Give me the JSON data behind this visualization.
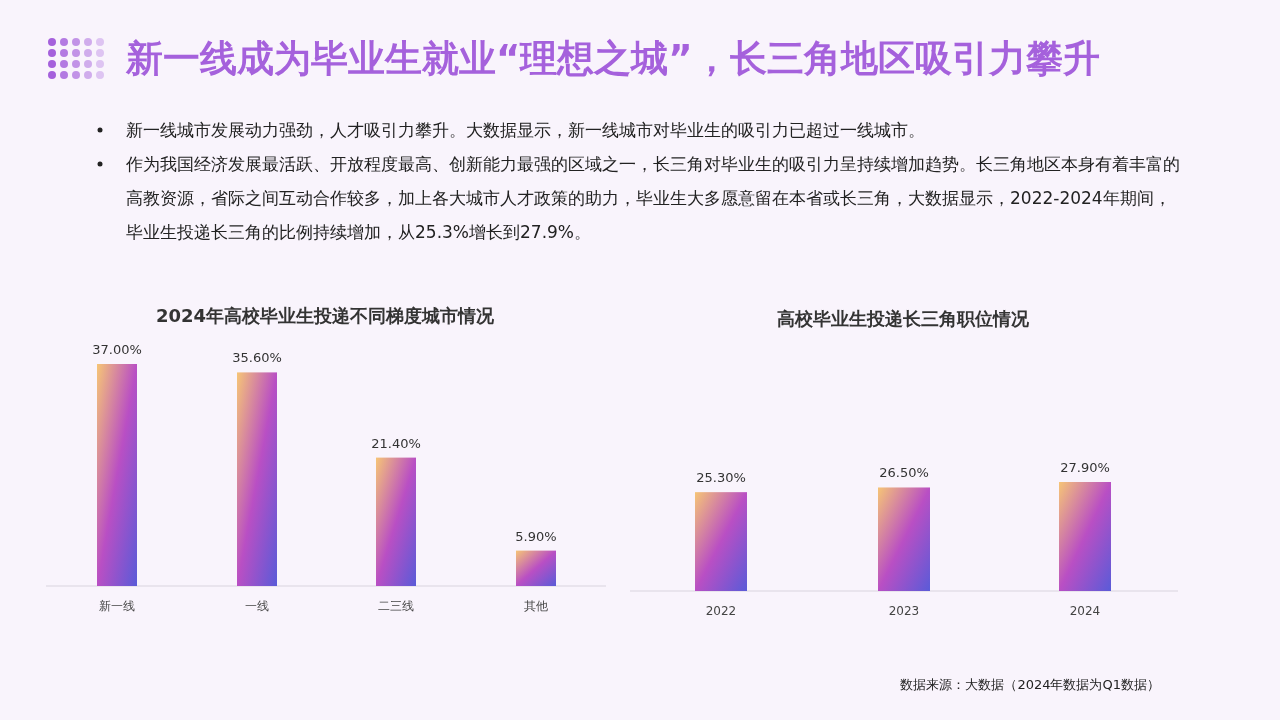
{
  "chart_data": [
    {
      "type": "bar",
      "title": "2024年高校毕业生投递不同梯度城市情况",
      "categories": [
        "新一线",
        "一线",
        "二三线",
        "其他"
      ],
      "values": [
        37.0,
        35.6,
        21.4,
        5.9
      ],
      "value_labels": [
        "37.00%",
        "35.60%",
        "21.40%",
        "5.90%"
      ],
      "color": "#b94fc4",
      "annotations": [
        "新一线成为毕业生就业“理想之城”，长三角地区吸引力攀升",
        "新一线城市发展动力强劲，人才吸引力攀升。大数据显示，新一线城市对毕业生的吸引力已超过一线城市。",
        "作为我国经济发展最活跃、开放程度最高、创新能力最强的区域之一，长三角对毕业生的吸引力呈持续增加趋势。长三角地区本身有着丰富的高教资源，省际之间互动合作较多，加上各大城市人才政策的助力，毕业生大多愿意留在本省或长三角，大数据显示，2022-2024年期间，毕业生投递长三角的比例持续增加，从25.3%增长到27.9%。"
      ]
    },
    {
      "type": "bar",
      "title": "高校毕业生投递长三角职位情况",
      "categories": [
        "2022",
        "2023",
        "2024"
      ],
      "values": [
        25.3,
        26.5,
        27.9
      ],
      "value_labels": [
        "25.30%",
        "26.50%",
        "27.90%"
      ],
      "color": "#b94fc4",
      "annotations": [
        "数据来源：大数据（2024年数据为Q1数据）"
      ]
    }
  ]
}
